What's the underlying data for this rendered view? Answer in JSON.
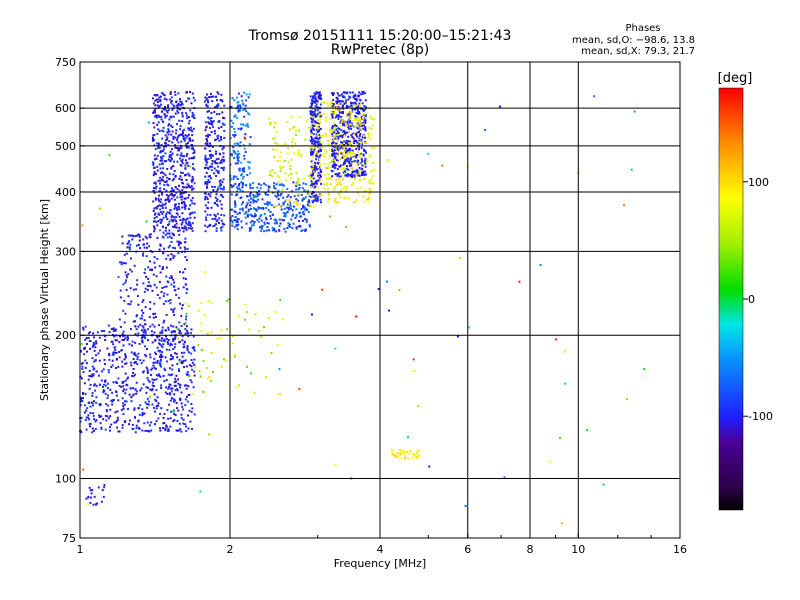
{
  "header": {
    "title": "Tromsø 20151111 15:20:00–15:21:43",
    "subtitle": "RwPretec (8p)"
  },
  "phase_stats": {
    "heading": "Phases",
    "line_o": "mean, sd,O: −98.6, 13.8",
    "line_x": "mean, sd,X:  79.3, 21.7"
  },
  "colorbar": {
    "label": "[deg]",
    "range": [
      -180,
      180
    ],
    "ticks": [
      {
        "value": 100,
        "label": "100"
      },
      {
        "value": 0,
        "label": "0"
      },
      {
        "value": -100,
        "label": "-100"
      }
    ]
  },
  "chart_data": {
    "type": "scatter",
    "title": "Tromsø 20151111 15:20:00–15:21:43",
    "subtitle": "RwPretec (8p)",
    "xlabel": "Frequency [MHz]",
    "ylabel": "Stationary phase Virtual Height [km]",
    "xscale": "log",
    "yscale": "log",
    "xlim": [
      1,
      16
    ],
    "ylim": [
      75,
      750
    ],
    "xticks": [
      {
        "value": 1,
        "label": "1"
      },
      {
        "value": 2,
        "label": "2"
      },
      {
        "value": 4,
        "label": "4"
      },
      {
        "value": 6,
        "label": "6"
      },
      {
        "value": 8,
        "label": "8"
      },
      {
        "value": 10,
        "label": "10"
      },
      {
        "value": 16,
        "label": "16"
      }
    ],
    "yticks": [
      {
        "value": 75,
        "label": "75"
      },
      {
        "value": 100,
        "label": "100"
      },
      {
        "value": 200,
        "label": "200"
      },
      {
        "value": 300,
        "label": "300"
      },
      {
        "value": 400,
        "label": "400"
      },
      {
        "value": 500,
        "label": "500"
      },
      {
        "value": 600,
        "label": "600"
      },
      {
        "value": 750,
        "label": "750"
      }
    ],
    "grid_x": [
      2,
      4,
      6,
      8,
      10
    ],
    "grid_y": [
      100,
      200,
      300,
      400,
      500,
      600
    ],
    "color_scale": "rainbow phase, -180 (black/purple) to 180 (red) degrees",
    "clusters": [
      {
        "name": "E-F1 low trace",
        "fmin": 1.0,
        "fmax": 1.7,
        "hmin": 125,
        "hmax": 210,
        "count": 700,
        "pmin": -115,
        "pmax": -85
      },
      {
        "name": "F1 rising trace",
        "fmin": 1.2,
        "fmax": 1.65,
        "hmin": 190,
        "hmax": 330,
        "count": 300,
        "pmin": -115,
        "pmax": -85
      },
      {
        "name": "O-mode F2 column",
        "fmin": 1.4,
        "fmax": 1.7,
        "hmin": 330,
        "hmax": 650,
        "count": 600,
        "pmin": -118,
        "pmax": -85
      },
      {
        "name": "O-mode F2 column 2",
        "fmin": 1.78,
        "fmax": 1.95,
        "hmin": 330,
        "hmax": 650,
        "count": 260,
        "pmin": -115,
        "pmax": -85
      },
      {
        "name": "F trace lower",
        "fmin": 2.0,
        "fmax": 2.9,
        "hmin": 330,
        "hmax": 420,
        "count": 350,
        "pmin": -105,
        "pmax": -55
      },
      {
        "name": "F trace 2.1 column",
        "fmin": 2.0,
        "fmax": 2.2,
        "hmin": 420,
        "hmax": 650,
        "count": 120,
        "pmin": -100,
        "pmax": -40
      },
      {
        "name": "F2 cusp column",
        "fmin": 2.9,
        "fmax": 3.05,
        "hmin": 380,
        "hmax": 650,
        "count": 260,
        "pmin": -118,
        "pmax": -85
      },
      {
        "name": "F2 upper block",
        "fmin": 3.2,
        "fmax": 3.75,
        "hmin": 430,
        "hmax": 650,
        "count": 500,
        "pmin": -118,
        "pmax": -85
      },
      {
        "name": "X-mode F trace",
        "fmin": 2.4,
        "fmax": 3.0,
        "hmin": 370,
        "hmax": 580,
        "count": 120,
        "pmin": 40,
        "pmax": 110
      },
      {
        "name": "X-mode F2",
        "fmin": 3.0,
        "fmax": 3.9,
        "hmin": 380,
        "hmax": 620,
        "count": 300,
        "pmin": 60,
        "pmax": 110
      },
      {
        "name": "X-mode low",
        "fmin": 1.55,
        "fmax": 2.6,
        "hmin": 150,
        "hmax": 240,
        "count": 70,
        "pmin": 20,
        "pmax": 110
      },
      {
        "name": "E echo",
        "fmin": 1.03,
        "fmax": 1.12,
        "hmin": 88,
        "hmax": 97,
        "count": 20,
        "pmin": -110,
        "pmax": -95
      },
      {
        "name": "X 4.4 MHz echo",
        "fmin": 4.2,
        "fmax": 4.8,
        "hmin": 110,
        "hmax": 115,
        "count": 35,
        "pmin": 80,
        "pmax": 105
      },
      {
        "name": "sparse scatter",
        "fmin": 1.0,
        "fmax": 14.0,
        "hmin": 80,
        "hmax": 680,
        "count": 70,
        "pmin": -130,
        "pmax": 180
      }
    ]
  }
}
